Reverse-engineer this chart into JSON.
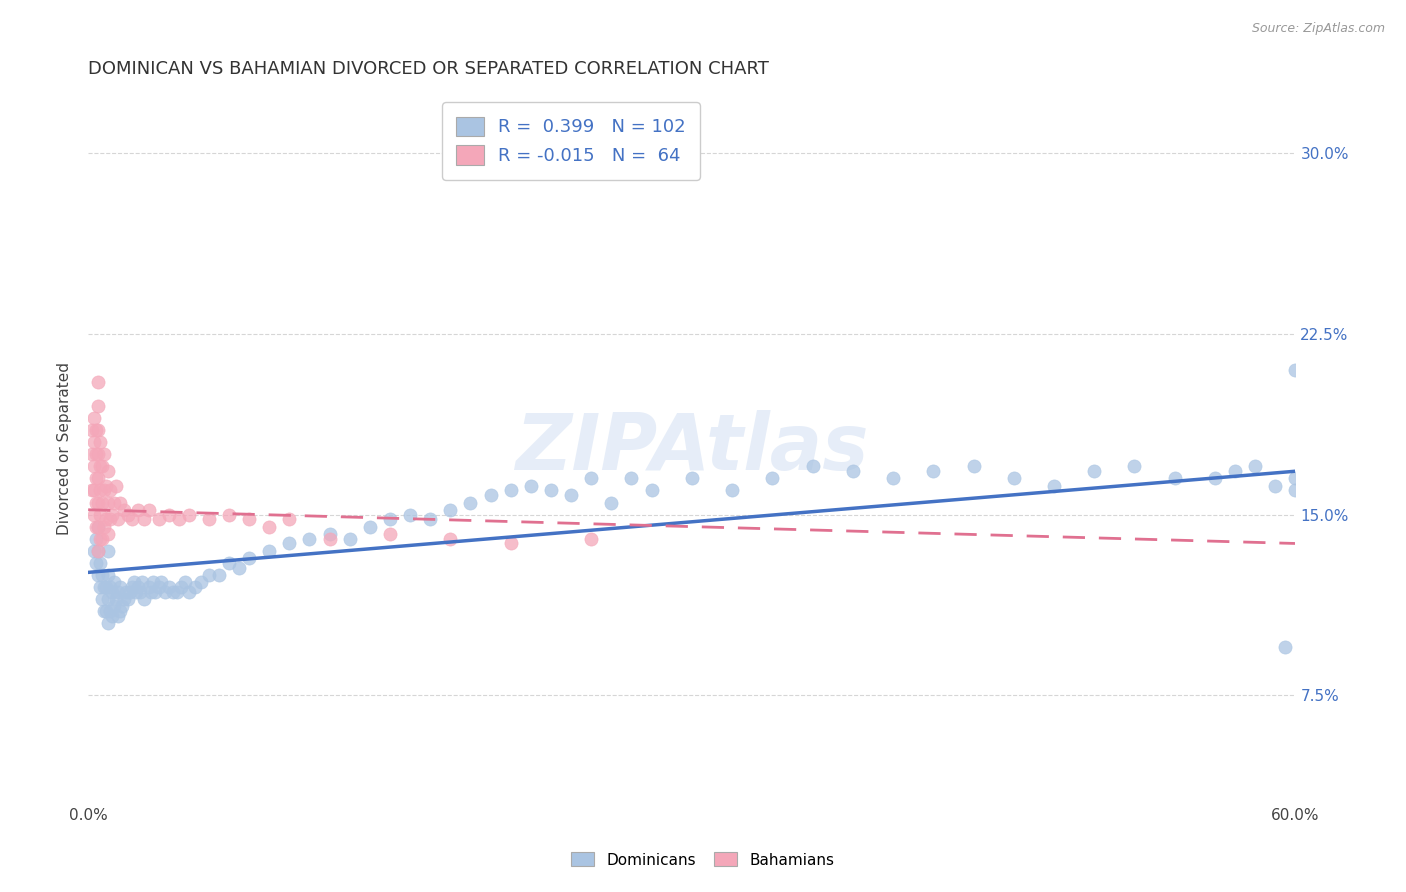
{
  "title": "DOMINICAN VS BAHAMIAN DIVORCED OR SEPARATED CORRELATION CHART",
  "source": "Source: ZipAtlas.com",
  "ylabel": "Divorced or Separated",
  "y_ticks": [
    0.075,
    0.15,
    0.225,
    0.3
  ],
  "y_tick_labels": [
    "7.5%",
    "15.0%",
    "22.5%",
    "30.0%"
  ],
  "x_range": [
    0.0,
    0.6
  ],
  "y_range": [
    0.03,
    0.325
  ],
  "dominican_R": 0.399,
  "dominican_N": 102,
  "bahamian_R": -0.015,
  "bahamian_N": 64,
  "dominican_color": "#aac4e2",
  "bahamian_color": "#f4a7b9",
  "dominican_line_color": "#4472c4",
  "bahamian_line_color": "#e07090",
  "watermark": "ZIPAtlas",
  "dom_line_x0": 0.0,
  "dom_line_y0": 0.126,
  "dom_line_x1": 0.6,
  "dom_line_y1": 0.168,
  "bah_line_x0": 0.0,
  "bah_line_y0": 0.152,
  "bah_line_x1": 0.6,
  "bah_line_y1": 0.138,
  "grid_color": "#cccccc",
  "background_color": "#ffffff",
  "title_fontsize": 13,
  "label_fontsize": 11,
  "tick_fontsize": 11,
  "dominican_x": [
    0.003,
    0.004,
    0.004,
    0.005,
    0.005,
    0.005,
    0.006,
    0.006,
    0.007,
    0.007,
    0.008,
    0.008,
    0.009,
    0.009,
    0.01,
    0.01,
    0.01,
    0.01,
    0.011,
    0.011,
    0.012,
    0.012,
    0.013,
    0.013,
    0.014,
    0.015,
    0.015,
    0.016,
    0.016,
    0.017,
    0.018,
    0.019,
    0.02,
    0.021,
    0.022,
    0.023,
    0.024,
    0.025,
    0.026,
    0.027,
    0.028,
    0.03,
    0.031,
    0.032,
    0.033,
    0.035,
    0.036,
    0.038,
    0.04,
    0.042,
    0.044,
    0.046,
    0.048,
    0.05,
    0.053,
    0.056,
    0.06,
    0.065,
    0.07,
    0.075,
    0.08,
    0.09,
    0.1,
    0.11,
    0.12,
    0.13,
    0.14,
    0.15,
    0.16,
    0.17,
    0.18,
    0.19,
    0.2,
    0.21,
    0.22,
    0.23,
    0.24,
    0.25,
    0.26,
    0.27,
    0.28,
    0.3,
    0.32,
    0.34,
    0.36,
    0.38,
    0.4,
    0.42,
    0.44,
    0.46,
    0.48,
    0.5,
    0.52,
    0.54,
    0.56,
    0.57,
    0.58,
    0.59,
    0.595,
    0.6,
    0.6,
    0.6
  ],
  "dominican_y": [
    0.135,
    0.13,
    0.14,
    0.125,
    0.135,
    0.145,
    0.12,
    0.13,
    0.115,
    0.125,
    0.11,
    0.12,
    0.11,
    0.12,
    0.105,
    0.115,
    0.125,
    0.135,
    0.11,
    0.12,
    0.108,
    0.118,
    0.112,
    0.122,
    0.115,
    0.108,
    0.118,
    0.11,
    0.12,
    0.112,
    0.115,
    0.118,
    0.115,
    0.118,
    0.12,
    0.122,
    0.118,
    0.12,
    0.118,
    0.122,
    0.115,
    0.12,
    0.118,
    0.122,
    0.118,
    0.12,
    0.122,
    0.118,
    0.12,
    0.118,
    0.118,
    0.12,
    0.122,
    0.118,
    0.12,
    0.122,
    0.125,
    0.125,
    0.13,
    0.128,
    0.132,
    0.135,
    0.138,
    0.14,
    0.142,
    0.14,
    0.145,
    0.148,
    0.15,
    0.148,
    0.152,
    0.155,
    0.158,
    0.16,
    0.162,
    0.16,
    0.158,
    0.165,
    0.155,
    0.165,
    0.16,
    0.165,
    0.16,
    0.165,
    0.17,
    0.168,
    0.165,
    0.168,
    0.17,
    0.165,
    0.162,
    0.168,
    0.17,
    0.165,
    0.165,
    0.168,
    0.17,
    0.162,
    0.095,
    0.165,
    0.21,
    0.16
  ],
  "bahamian_x": [
    0.002,
    0.002,
    0.002,
    0.003,
    0.003,
    0.003,
    0.003,
    0.003,
    0.004,
    0.004,
    0.004,
    0.004,
    0.004,
    0.005,
    0.005,
    0.005,
    0.005,
    0.005,
    0.005,
    0.005,
    0.005,
    0.006,
    0.006,
    0.006,
    0.006,
    0.006,
    0.007,
    0.007,
    0.007,
    0.008,
    0.008,
    0.008,
    0.009,
    0.009,
    0.01,
    0.01,
    0.01,
    0.011,
    0.011,
    0.012,
    0.013,
    0.014,
    0.015,
    0.016,
    0.018,
    0.02,
    0.022,
    0.025,
    0.028,
    0.03,
    0.035,
    0.04,
    0.045,
    0.05,
    0.06,
    0.07,
    0.08,
    0.09,
    0.1,
    0.12,
    0.15,
    0.18,
    0.21,
    0.25
  ],
  "bahamian_y": [
    0.16,
    0.175,
    0.185,
    0.15,
    0.16,
    0.17,
    0.18,
    0.19,
    0.145,
    0.155,
    0.165,
    0.175,
    0.185,
    0.135,
    0.145,
    0.155,
    0.165,
    0.175,
    0.185,
    0.195,
    0.205,
    0.14,
    0.15,
    0.16,
    0.17,
    0.18,
    0.14,
    0.155,
    0.17,
    0.145,
    0.16,
    0.175,
    0.148,
    0.162,
    0.142,
    0.155,
    0.168,
    0.148,
    0.16,
    0.15,
    0.155,
    0.162,
    0.148,
    0.155,
    0.152,
    0.15,
    0.148,
    0.152,
    0.148,
    0.152,
    0.148,
    0.15,
    0.148,
    0.15,
    0.148,
    0.15,
    0.148,
    0.145,
    0.148,
    0.14,
    0.142,
    0.14,
    0.138,
    0.14
  ]
}
